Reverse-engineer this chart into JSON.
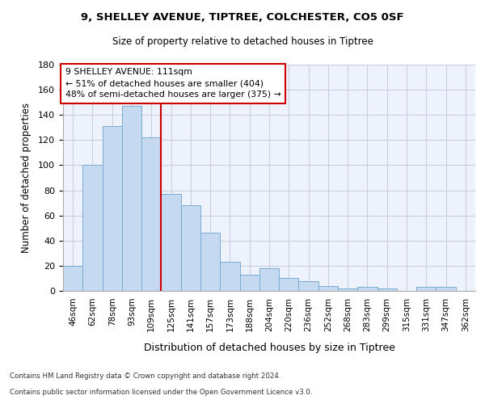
{
  "title1": "9, SHELLEY AVENUE, TIPTREE, COLCHESTER, CO5 0SF",
  "title2": "Size of property relative to detached houses in Tiptree",
  "xlabel": "Distribution of detached houses by size in Tiptree",
  "ylabel": "Number of detached properties",
  "categories": [
    "46sqm",
    "62sqm",
    "78sqm",
    "93sqm",
    "109sqm",
    "125sqm",
    "141sqm",
    "157sqm",
    "173sqm",
    "188sqm",
    "204sqm",
    "220sqm",
    "236sqm",
    "252sqm",
    "268sqm",
    "283sqm",
    "299sqm",
    "315sqm",
    "331sqm",
    "347sqm",
    "362sqm"
  ],
  "values": [
    20,
    100,
    131,
    147,
    122,
    77,
    68,
    46,
    23,
    13,
    18,
    10,
    8,
    4,
    2,
    3,
    2,
    0,
    3,
    3,
    0
  ],
  "bar_color": "#c5d9f0",
  "bar_edge_color": "#7aadd4",
  "vline_x_index": 4,
  "vline_color": "#cc0000",
  "annotation_lines": [
    "9 SHELLEY AVENUE: 111sqm",
    "← 51% of detached houses are smaller (404)",
    "48% of semi-detached houses are larger (375) →"
  ],
  "annotation_box_color": "#ffffff",
  "annotation_box_edge": "#cc0000",
  "ylim": [
    0,
    180
  ],
  "yticks": [
    0,
    20,
    40,
    60,
    80,
    100,
    120,
    140,
    160,
    180
  ],
  "footer1": "Contains HM Land Registry data © Crown copyright and database right 2024.",
  "footer2": "Contains public sector information licensed under the Open Government Licence v3.0.",
  "plot_bg_color": "#eef2fc",
  "fig_bg_color": "#ffffff",
  "grid_color": "#c8cee0"
}
